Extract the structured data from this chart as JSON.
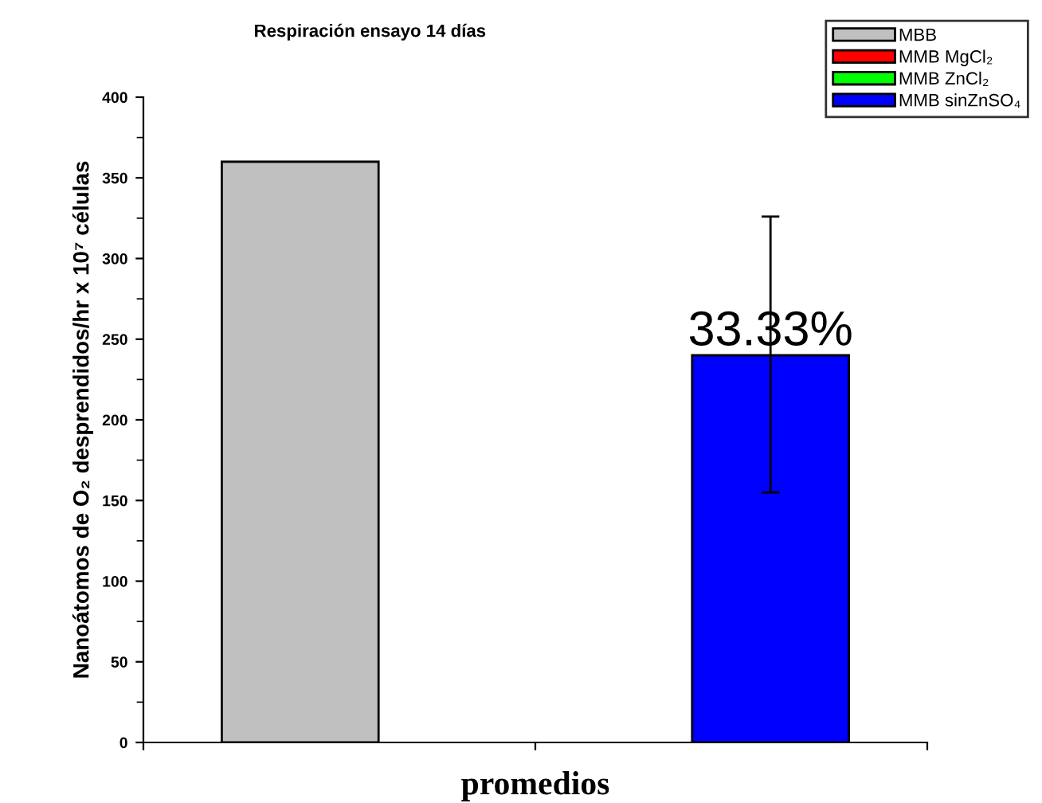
{
  "chart_data": {
    "type": "bar",
    "title": "Respiración ensayo 14 días",
    "xlabel": "promedios",
    "ylabel": "Nanoátomos de O₂ desprendidos/hr x 10⁷ células",
    "categories": [
      null
    ],
    "series": [
      {
        "name": "MBB",
        "color": "#c0c0c0",
        "values": [
          360
        ]
      },
      {
        "name": "MMB MgCl₂",
        "color": "#ff0000",
        "values": [
          null
        ]
      },
      {
        "name": "MMB ZnCl₂",
        "color": "#00ff00",
        "values": [
          null
        ]
      },
      {
        "name": "MMB sinZnSO₄",
        "color": "#0000ff",
        "values": [
          240
        ],
        "errors": [
          [
            155,
            326
          ]
        ]
      }
    ],
    "annotations": [
      "33.33%"
    ],
    "ylim": [
      0,
      400
    ],
    "yticks": [
      0,
      50,
      100,
      150,
      200,
      250,
      300,
      350,
      400
    ],
    "grid": false,
    "legend": "top right"
  }
}
